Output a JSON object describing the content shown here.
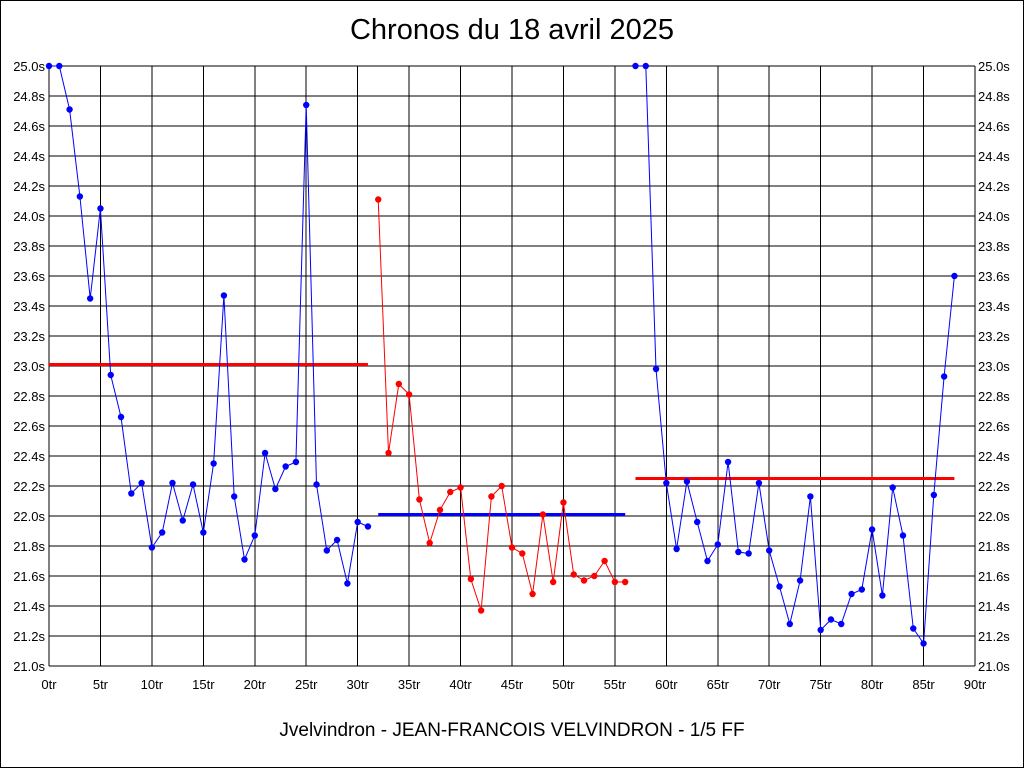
{
  "chart_data": {
    "type": "line",
    "title": "Chronos du 18 avril 2025",
    "footer": "Jvelvindron - JEAN-FRANCOIS VELVINDRON - 1/5 FF",
    "xlabel": "",
    "ylabel": "",
    "xlim": [
      0,
      90
    ],
    "ylim": [
      21.0,
      25.0
    ],
    "x_tick_labels": [
      "0tr",
      "5tr",
      "10tr",
      "15tr",
      "20tr",
      "25tr",
      "30tr",
      "35tr",
      "40tr",
      "45tr",
      "50tr",
      "55tr",
      "60tr",
      "65tr",
      "70tr",
      "75tr",
      "80tr",
      "85tr",
      "90tr"
    ],
    "y_tick_labels": [
      "21.0s",
      "21.2s",
      "21.4s",
      "21.6s",
      "21.8s",
      "22.0s",
      "22.2s",
      "22.4s",
      "22.6s",
      "22.8s",
      "23.0s",
      "23.2s",
      "23.4s",
      "23.6s",
      "23.8s",
      "24.0s",
      "24.2s",
      "24.4s",
      "24.6s",
      "24.8s",
      "25.0s"
    ],
    "grid": true,
    "legend": "none",
    "series": [
      {
        "color": "#0000ff",
        "points": [
          [
            0,
            25.0
          ],
          [
            1,
            25.0
          ],
          [
            2,
            24.71
          ],
          [
            3,
            24.13
          ],
          [
            4,
            23.45
          ],
          [
            5,
            24.05
          ],
          [
            6,
            22.94
          ],
          [
            7,
            22.66
          ],
          [
            8,
            22.15
          ],
          [
            9,
            22.22
          ],
          [
            10,
            21.79
          ],
          [
            11,
            21.89
          ],
          [
            12,
            22.22
          ],
          [
            13,
            21.97
          ],
          [
            14,
            22.21
          ],
          [
            15,
            21.89
          ],
          [
            16,
            22.35
          ],
          [
            17,
            23.47
          ],
          [
            18,
            22.13
          ],
          [
            19,
            21.71
          ],
          [
            20,
            21.87
          ],
          [
            21,
            22.42
          ],
          [
            22,
            22.18
          ],
          [
            23,
            22.33
          ],
          [
            24,
            22.36
          ],
          [
            25,
            24.74
          ],
          [
            26,
            22.21
          ],
          [
            27,
            21.77
          ],
          [
            28,
            21.84
          ],
          [
            29,
            21.55
          ],
          [
            30,
            21.96
          ],
          [
            31,
            21.93
          ]
        ]
      },
      {
        "color": "#ff0000",
        "points": [
          [
            32,
            24.11
          ],
          [
            33,
            22.42
          ],
          [
            34,
            22.88
          ],
          [
            35,
            22.81
          ],
          [
            36,
            22.11
          ],
          [
            37,
            21.82
          ],
          [
            38,
            22.04
          ],
          [
            39,
            22.16
          ],
          [
            40,
            22.19
          ],
          [
            41,
            21.58
          ],
          [
            42,
            21.37
          ],
          [
            43,
            22.13
          ],
          [
            44,
            22.2
          ],
          [
            45,
            21.79
          ],
          [
            46,
            21.75
          ],
          [
            47,
            21.48
          ],
          [
            48,
            22.01
          ],
          [
            49,
            21.56
          ],
          [
            50,
            22.09
          ],
          [
            51,
            21.61
          ],
          [
            52,
            21.57
          ],
          [
            53,
            21.6
          ],
          [
            54,
            21.7
          ],
          [
            55,
            21.56
          ],
          [
            56,
            21.56
          ]
        ]
      },
      {
        "color": "#0000ff",
        "points": [
          [
            57,
            25.0
          ],
          [
            58,
            25.0
          ],
          [
            59,
            22.98
          ],
          [
            60,
            22.22
          ],
          [
            61,
            21.78
          ],
          [
            62,
            22.23
          ],
          [
            63,
            21.96
          ],
          [
            64,
            21.7
          ],
          [
            65,
            21.81
          ],
          [
            66,
            22.36
          ],
          [
            67,
            21.76
          ],
          [
            68,
            21.75
          ],
          [
            69,
            22.22
          ],
          [
            70,
            21.77
          ],
          [
            71,
            21.53
          ],
          [
            72,
            21.28
          ],
          [
            73,
            21.57
          ],
          [
            74,
            22.13
          ],
          [
            75,
            21.24
          ],
          [
            76,
            21.31
          ],
          [
            77,
            21.28
          ],
          [
            78,
            21.48
          ],
          [
            79,
            21.51
          ],
          [
            80,
            21.91
          ],
          [
            81,
            21.47
          ],
          [
            82,
            22.19
          ],
          [
            83,
            21.87
          ],
          [
            84,
            21.25
          ],
          [
            85,
            21.15
          ],
          [
            86,
            22.14
          ],
          [
            87,
            22.93
          ],
          [
            88,
            23.6
          ]
        ]
      }
    ],
    "average_lines": [
      {
        "x_start": 0,
        "x_end": 31,
        "y": 23.01,
        "color": "#ff0000"
      },
      {
        "x_start": 32,
        "x_end": 56,
        "y": 22.01,
        "color": "#0000ff"
      },
      {
        "x_start": 57,
        "x_end": 88,
        "y": 22.25,
        "color": "#ff0000"
      }
    ]
  }
}
